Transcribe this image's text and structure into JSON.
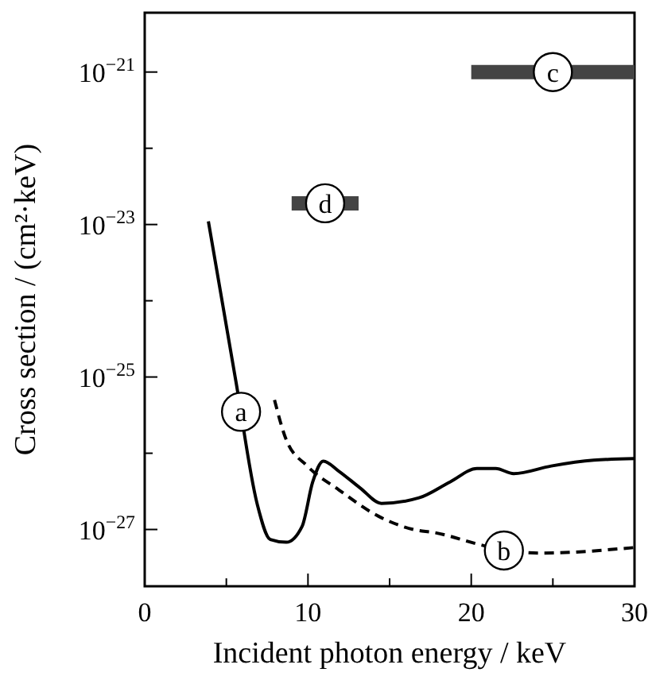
{
  "chart_data": {
    "type": "line",
    "xlabel": "Incident photon energy / keV",
    "ylabel": "Cross section / (cm²·keV)",
    "log": "y",
    "xlim": [
      0,
      30
    ],
    "xticks": [
      0,
      {
        "value": 5,
        "label": null
      },
      10,
      {
        "value": 15,
        "label": null
      },
      20,
      {
        "value": 25,
        "label": null
      },
      30
    ],
    "ylim": [
      1.8e-28,
      6e-21
    ],
    "yticks": [
      {
        "value": 1e-21,
        "label": "10$^{−21}$"
      },
      {
        "value": 1e-22,
        "label": null
      },
      {
        "value": 1e-23,
        "label": "10$^{−23}$"
      },
      {
        "value": 1e-24,
        "label": null
      },
      {
        "value": 1e-25,
        "label": "10$^{−25}$"
      },
      {
        "value": 1e-26,
        "label": null
      },
      {
        "value": 1e-27,
        "label": "10$^{−27}$"
      }
    ],
    "series": [
      {
        "line_style": "solid",
        "color": "#000000",
        "x": [
          3.9,
          5.58,
          6.07,
          6.88,
          7.69,
          8.67,
          9.64,
          10.29,
          10.94,
          11.9,
          13.2,
          14.5,
          16.8,
          18.7,
          20.35,
          21.5,
          22.6,
          24.9,
          27.5,
          30
        ],
        "values": [
          1.1e-23,
          8.9e-26,
          null,
          2.2e-27,
          7.4e-28,
          6.8e-28,
          1.1e-27,
          4.2e-27,
          7.9e-27,
          5.8e-27,
          3.5e-27,
          2.2e-27,
          2.6e-27,
          4.2e-27,
          6.3e-27,
          6.3e-27,
          5.4e-27,
          6.8e-27,
          8.1e-27,
          8.5e-27
        ]
      },
      {
        "line_style": "dashed",
        "color": "#000000",
        "x": [
          7.95,
          8.67,
          9.96,
          11.9,
          14.3,
          16.46,
          17.75,
          21,
          24.2,
          30
        ],
        "values": [
          5e-26,
          1.5e-26,
          6.8e-27,
          3.3e-27,
          1.5e-27,
          1e-27,
          9.1e-28,
          6e-28,
          4.9e-28,
          5.8e-28
        ]
      },
      {
        "color": "#444444",
        "x": [
          20,
          30
        ],
        "values": [
          1e-21,
          1e-21
        ]
      },
      {
        "color": "#444444",
        "x": [
          9,
          13.1
        ],
        "values": [
          1.9e-23,
          1.9e-23
        ]
      }
    ],
    "annotations": [
      {
        "text": "a",
        "x": 5.9,
        "y": 3.5e-26
      },
      {
        "text": "b",
        "x": 22,
        "y": 5.3e-28
      },
      {
        "text": "c",
        "x": 25,
        "y": 1e-21
      },
      {
        "text": "d",
        "x": 11.05,
        "y": 1.9e-23
      }
    ]
  }
}
